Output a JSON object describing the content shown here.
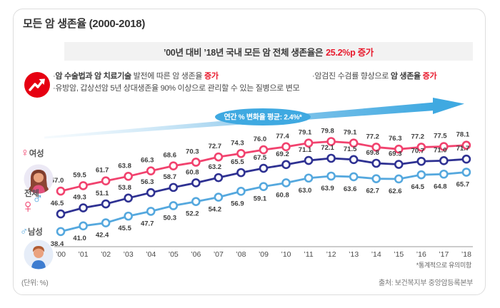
{
  "title": "모든 암 생존율 (2000-2018)",
  "banner": {
    "prefix": "’00년 대비 ’18년 국내 모든 암 전체 생존율은",
    "highlight": "25.2%p 증가"
  },
  "highlights": {
    "left1_pre": "·",
    "left1_bold": "암 수술법과 암 치료기술",
    "left1_mid": " 발전에 따른 암 생존율 ",
    "left1_red": "증가",
    "left2": "·유방암, 갑상선암  5년 상대생존율 90% 이상으로 관리할 수 있는 질병으로 변모",
    "right_pre": "·암검진 수검률  향상으로 ",
    "right_bold": "암 생존율",
    "right_red": "증가"
  },
  "arrow_label": "연간 % 변화율 평균: 2.4%*",
  "legend": {
    "female": "여성",
    "total": "전체",
    "male": "남성",
    "female_symbol": "♀",
    "male_symbol": "♂"
  },
  "chart_data": {
    "type": "line",
    "x": [
      "’00",
      "’01",
      "’02",
      "’03",
      "’04",
      "’05",
      "’06",
      "’07",
      "’08",
      "’09",
      "’10",
      "’11",
      "’12",
      "’13",
      "’14",
      "’15",
      "’16",
      "’17",
      "’18"
    ],
    "series": [
      {
        "name": "여성",
        "color": "#f1426e",
        "label_position": "above",
        "values": [
          57.0,
          59.5,
          61.7,
          63.8,
          66.3,
          68.6,
          70.3,
          72.7,
          74.3,
          76.0,
          77.4,
          79.1,
          79.8,
          79.1,
          77.2,
          76.3,
          77.2,
          77.5,
          78.1
        ]
      },
      {
        "name": "전체",
        "color": "#2e3192",
        "label_position": "above",
        "values": [
          46.5,
          49.3,
          51.1,
          53.8,
          56.3,
          58.7,
          60.8,
          63.2,
          65.5,
          67.5,
          69.2,
          71.1,
          72.1,
          71.5,
          69.8,
          69.3,
          70.7,
          71.0,
          71.7
        ]
      },
      {
        "name": "남성",
        "color": "#55a8de",
        "label_position": "below",
        "values": [
          38.4,
          41.0,
          42.4,
          45.5,
          47.7,
          50.3,
          52.2,
          54.2,
          56.9,
          59.1,
          60.8,
          63.0,
          63.9,
          63.6,
          62.7,
          62.6,
          64.5,
          64.8,
          65.7
        ]
      }
    ],
    "title": "모든 암 생존율 (2000-2018)",
    "xlabel": "",
    "ylabel": "",
    "unit": "%",
    "ylim": [
      36,
      84
    ],
    "grid": false,
    "legend_position": "left"
  },
  "footnote": "*통계적으로 유의미함",
  "unit_note": "(단위: %)",
  "source": "출처: 보건복지부 중앙암등록본부",
  "colors": {
    "accent_red": "#e60012",
    "highlight_red": "#e8192c",
    "arrow_blue": "#3fa9e1",
    "female_line": "#f1426e",
    "total_line": "#2e3192",
    "male_line": "#55a8de",
    "banner_bg": "#f2f2f2"
  }
}
